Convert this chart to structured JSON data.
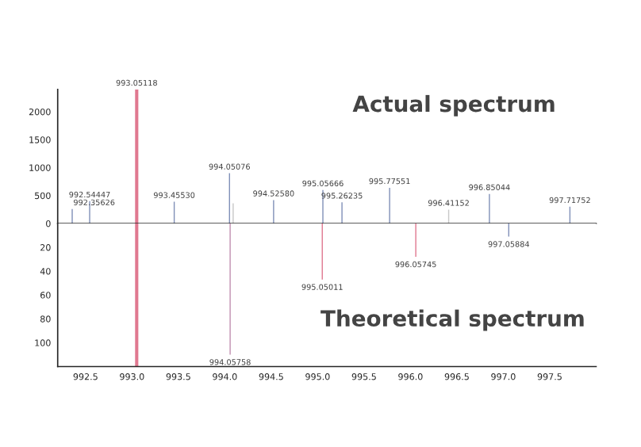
{
  "chart_data": [
    {
      "type": "bar",
      "annotations": [
        "Actual spectrum",
        {
          "text": "992.35626",
          "x": 992.35626,
          "y": 260
        },
        {
          "text": "992.54447",
          "x": 992.54447,
          "y": 400
        },
        {
          "text": "993.05118",
          "x": 993.05118,
          "y": 2400
        },
        {
          "text": "993.45530",
          "x": 993.4553,
          "y": 390
        },
        {
          "text": "994.05076",
          "x": 994.05076,
          "y": 900
        },
        {
          "text": "994.52580",
          "x": 994.5258,
          "y": 420
        },
        {
          "text": "995.05666",
          "x": 995.05666,
          "y": 600
        },
        {
          "text": "995.26235",
          "x": 995.26235,
          "y": 380
        },
        {
          "text": "995.77551",
          "x": 995.77551,
          "y": 640
        },
        {
          "text": "996.41152",
          "x": 996.41152,
          "y": 250
        },
        {
          "text": "996.85044",
          "x": 996.85044,
          "y": 530
        },
        {
          "text": "997.71752",
          "x": 997.71752,
          "y": 300
        }
      ],
      "x": [
        992.35626,
        992.54447,
        993.05118,
        993.4553,
        994.05076,
        994.09,
        994.5258,
        995.05666,
        995.26235,
        995.77551,
        996.41152,
        996.85044,
        997.71752
      ],
      "values": [
        260,
        400,
        2400,
        390,
        900,
        360,
        420,
        600,
        380,
        640,
        250,
        530,
        300
      ],
      "colors": [
        "#8090b8",
        "#8090b8",
        "#e07890",
        "#8090b8",
        "#8090b8",
        "#c8c8c8",
        "#8090b8",
        "#8090b8",
        "#8090b8",
        "#8090b8",
        "#c8c8c8",
        "#8090b8",
        "#8090b8"
      ],
      "xlim": [
        992.2,
        998.0
      ],
      "ylim": [
        0,
        2400
      ],
      "yticks": [
        0,
        500,
        1000,
        1500,
        2000
      ],
      "tick_labels": "y"
    },
    {
      "type": "bar",
      "annotations": [
        "Theoretical spectrum",
        {
          "text": "994.05758",
          "x": 994.05758,
          "y": 110
        },
        {
          "text": "995.05011",
          "x": 995.05011,
          "y": 47
        },
        {
          "text": "996.05745",
          "x": 996.05745,
          "y": 28
        },
        {
          "text": "997.05884",
          "x": 997.05884,
          "y": 11
        }
      ],
      "x": [
        993.05118,
        994.05758,
        995.05011,
        996.05745,
        997.05884
      ],
      "values": [
        120,
        110,
        47,
        28,
        11
      ],
      "colors": [
        "#e07890",
        "#c090b0",
        "#e07890",
        "#e07890",
        "#8090b8"
      ],
      "xlim": [
        992.2,
        998.0
      ],
      "xticks": [
        992.5,
        {
          "value": 993,
          "label": "993.0"
        },
        993.5,
        {
          "value": 994,
          "label": "994.0"
        },
        994.5,
        {
          "value": 995,
          "label": "995.0"
        },
        995.5,
        {
          "value": 996,
          "label": "996.0"
        },
        996.5,
        {
          "value": 997,
          "label": "997.0"
        },
        997.5
      ],
      "ylim": [
        120,
        0
      ],
      "yticks": [
        20,
        40,
        60,
        80,
        100
      ]
    }
  ]
}
